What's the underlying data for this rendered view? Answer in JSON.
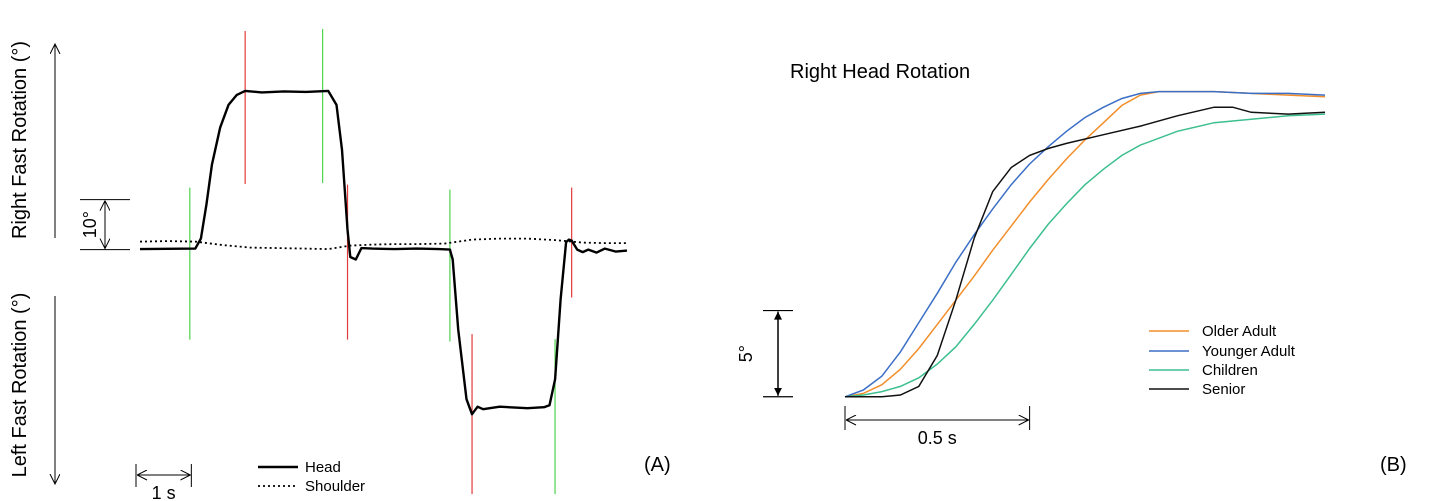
{
  "chart_data": [
    {
      "type": "line",
      "panel_label": "(A)",
      "ylabel_top": "Right Fast Rotation (°)",
      "ylabel_bottom": "Left Fast Rotation (°)",
      "y_scale_bar": {
        "value": 10,
        "label": "10°"
      },
      "x_scale_bar": {
        "value": 1,
        "label": "1 s"
      },
      "legend": {
        "position": "bottom-center"
      },
      "series": [
        {
          "name": "Head",
          "style": "solid",
          "x": [
            0.0,
            1.0,
            1.1,
            1.2,
            1.3,
            1.45,
            1.6,
            1.75,
            1.9,
            2.2,
            2.6,
            3.0,
            3.4,
            3.55,
            3.65,
            3.75,
            3.8,
            3.9,
            4.0,
            4.2,
            4.6,
            5.0,
            5.4,
            5.6,
            5.65,
            5.75,
            5.9,
            6.0,
            6.1,
            6.2,
            6.5,
            7.0,
            7.3,
            7.4,
            7.5,
            7.6,
            7.7,
            7.75,
            7.8,
            7.9,
            8.0,
            8.1,
            8.25,
            8.4,
            8.6,
            8.8
          ],
          "y": [
            0.1,
            0.2,
            2.2,
            9.0,
            17.0,
            24.5,
            29.0,
            31.0,
            31.8,
            31.5,
            31.7,
            31.6,
            31.8,
            29.0,
            20.0,
            4.0,
            -1.5,
            -2.0,
            0.3,
            0.2,
            0.1,
            0.2,
            0.1,
            0.0,
            -2.0,
            -16.0,
            -30.0,
            -33.0,
            -31.5,
            -32.0,
            -31.5,
            -31.8,
            -31.6,
            -31.2,
            -26.0,
            -10.0,
            1.5,
            2.0,
            1.8,
            0.0,
            -0.5,
            0.0,
            -0.6,
            0.2,
            -0.4,
            -0.2
          ]
        },
        {
          "name": "Shoulder",
          "style": "dotted",
          "x": [
            0.0,
            0.5,
            1.0,
            1.5,
            2.0,
            2.5,
            3.0,
            3.4,
            3.8,
            4.2,
            4.6,
            5.0,
            5.5,
            6.0,
            6.5,
            7.0,
            7.5,
            8.0,
            8.4,
            8.8
          ],
          "y": [
            1.6,
            1.7,
            1.6,
            0.9,
            0.4,
            0.3,
            0.2,
            0.1,
            0.8,
            1.0,
            1.1,
            1.1,
            1.2,
            2.0,
            2.2,
            2.2,
            1.9,
            1.4,
            1.3,
            1.3
          ]
        }
      ],
      "markers": {
        "green_x": [
          0.9,
          3.3,
          5.6,
          7.5
        ],
        "red_x": [
          1.9,
          3.75,
          6.0,
          7.8
        ]
      },
      "xlim": [
        0.0,
        8.8
      ],
      "ylim": [
        -47,
        36
      ]
    },
    {
      "type": "line",
      "panel_label": "(B)",
      "title": "Right Head Rotation",
      "y_scale_bar": {
        "value": 5,
        "label": "5°"
      },
      "x_scale_bar": {
        "value": 0.5,
        "label": "0.5 s"
      },
      "legend": {
        "position": "center-right"
      },
      "series": [
        {
          "name": "Older Adult",
          "color": "#f28e2b",
          "x": [
            0.0,
            0.05,
            0.1,
            0.15,
            0.2,
            0.25,
            0.3,
            0.35,
            0.4,
            0.45,
            0.5,
            0.55,
            0.6,
            0.65,
            0.7,
            0.75,
            0.8,
            0.85,
            0.9,
            1.0,
            1.1,
            1.2,
            1.3
          ],
          "y": [
            0.0,
            0.2,
            0.7,
            1.6,
            2.8,
            4.2,
            5.6,
            7.0,
            8.5,
            9.9,
            11.3,
            12.6,
            13.8,
            14.9,
            15.9,
            16.9,
            17.5,
            17.7,
            17.7,
            17.7,
            17.6,
            17.5,
            17.4
          ]
        },
        {
          "name": "Younger Adult",
          "color": "#3b6fc6",
          "x": [
            0.0,
            0.05,
            0.1,
            0.15,
            0.2,
            0.25,
            0.3,
            0.35,
            0.4,
            0.45,
            0.5,
            0.55,
            0.6,
            0.65,
            0.7,
            0.75,
            0.8,
            0.85,
            0.9,
            1.0,
            1.1,
            1.2,
            1.3
          ],
          "y": [
            0.0,
            0.4,
            1.2,
            2.6,
            4.3,
            6.0,
            7.8,
            9.4,
            10.9,
            12.3,
            13.5,
            14.5,
            15.4,
            16.2,
            16.8,
            17.3,
            17.6,
            17.7,
            17.7,
            17.7,
            17.6,
            17.6,
            17.5
          ]
        },
        {
          "name": "Children",
          "color": "#3dbf8f",
          "x": [
            0.0,
            0.05,
            0.1,
            0.15,
            0.2,
            0.25,
            0.3,
            0.35,
            0.4,
            0.45,
            0.5,
            0.55,
            0.6,
            0.65,
            0.7,
            0.75,
            0.8,
            0.9,
            1.0,
            1.1,
            1.2,
            1.3
          ],
          "y": [
            0.0,
            0.1,
            0.3,
            0.6,
            1.1,
            1.9,
            2.9,
            4.2,
            5.6,
            7.1,
            8.6,
            10.0,
            11.2,
            12.3,
            13.2,
            14.0,
            14.6,
            15.4,
            15.9,
            16.1,
            16.3,
            16.4
          ]
        },
        {
          "name": "Senior",
          "color": "#111111",
          "x": [
            0.0,
            0.05,
            0.1,
            0.15,
            0.2,
            0.25,
            0.3,
            0.35,
            0.4,
            0.45,
            0.5,
            0.55,
            0.6,
            0.7,
            0.8,
            0.9,
            1.0,
            1.05,
            1.1,
            1.2,
            1.3
          ],
          "y": [
            0.0,
            0.0,
            0.0,
            0.1,
            0.6,
            2.4,
            5.6,
            9.2,
            11.9,
            13.3,
            14.0,
            14.4,
            14.7,
            15.2,
            15.7,
            16.3,
            16.8,
            16.8,
            16.5,
            16.4,
            16.5
          ]
        }
      ],
      "xlim": [
        0.0,
        1.3
      ],
      "ylim": [
        -1,
        20
      ]
    }
  ]
}
